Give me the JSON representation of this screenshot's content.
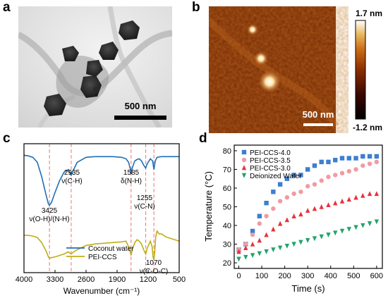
{
  "figure": {
    "panels": {
      "a": {
        "letter": "a",
        "scale_bar_label": "500 nm"
      },
      "b": {
        "letter": "b",
        "scale_bar_label": "500 nm",
        "colorbar_max": "1.7 nm",
        "colorbar_min": "-1.2 nm",
        "colormap_colors": [
          "#000000",
          "#3a0800",
          "#8a2e00",
          "#c96a14",
          "#e8b357",
          "#ffffff"
        ]
      },
      "c": {
        "letter": "c",
        "annotations": [
          {
            "id": "3425",
            "lines": [
              "3425",
              "ν(O-H)/(N-H)"
            ]
          },
          {
            "id": "2935",
            "lines": [
              "2935",
              "ν(C-H)"
            ]
          },
          {
            "id": "1585",
            "lines": [
              "1585",
              "δ(N-H)"
            ]
          },
          {
            "id": "1255",
            "lines": [
              "1255",
              "ν(C-N)"
            ]
          },
          {
            "id": "1070",
            "lines": [
              "1070",
              "ν(C-O-C)"
            ]
          }
        ]
      },
      "d": {
        "letter": "d"
      }
    }
  },
  "chart_data": [
    {
      "panel": "c",
      "type": "line",
      "xlabel": "Wavenumber (cm⁻¹)",
      "ylabel": "",
      "xlim": [
        4000,
        500
      ],
      "x_reversed": true,
      "x_ticks": [
        4000,
        3300,
        2600,
        1900,
        1200,
        500
      ],
      "y_ticks_shown": false,
      "dashed_reference_lines": [
        3425,
        2935,
        1585,
        1255,
        1070
      ],
      "reference_line_color": "#f08080",
      "legend_placement": "center-right",
      "series": [
        {
          "name": "Coconut water",
          "color": "#1f6fb4",
          "x": [
            4000,
            3900,
            3800,
            3700,
            3600,
            3500,
            3450,
            3425,
            3380,
            3300,
            3200,
            3100,
            3000,
            2935,
            2880,
            2800,
            2600,
            2400,
            2200,
            2000,
            1800,
            1700,
            1640,
            1600,
            1585,
            1560,
            1500,
            1450,
            1400,
            1350,
            1300,
            1255,
            1220,
            1150,
            1100,
            1070,
            1040,
            1000,
            900,
            800,
            700,
            600,
            500
          ],
          "y": [
            1.0,
            0.995,
            0.985,
            0.95,
            0.85,
            0.72,
            0.66,
            0.65,
            0.67,
            0.74,
            0.82,
            0.88,
            0.9,
            0.86,
            0.9,
            0.95,
            0.985,
            0.99,
            0.99,
            0.99,
            0.985,
            0.975,
            0.95,
            0.9,
            0.87,
            0.91,
            0.96,
            0.97,
            0.975,
            0.96,
            0.93,
            0.91,
            0.94,
            0.975,
            0.96,
            0.9,
            0.96,
            0.985,
            0.99,
            0.99,
            0.99,
            0.99,
            0.99
          ]
        },
        {
          "name": "PEI-CCS",
          "color": "#bfae16",
          "x": [
            4000,
            3900,
            3800,
            3700,
            3600,
            3500,
            3450,
            3425,
            3380,
            3300,
            3200,
            3100,
            3000,
            2935,
            2880,
            2800,
            2600,
            2400,
            2200,
            2000,
            1800,
            1700,
            1640,
            1600,
            1585,
            1560,
            1500,
            1450,
            1400,
            1350,
            1300,
            1255,
            1220,
            1150,
            1110,
            1090,
            1070,
            1050,
            1030,
            1000,
            950,
            900,
            850,
            800,
            700,
            600,
            500
          ],
          "y": [
            0.44,
            0.44,
            0.435,
            0.425,
            0.39,
            0.33,
            0.29,
            0.28,
            0.285,
            0.29,
            0.3,
            0.31,
            0.325,
            0.31,
            0.325,
            0.34,
            0.37,
            0.38,
            0.385,
            0.39,
            0.395,
            0.4,
            0.36,
            0.32,
            0.3,
            0.34,
            0.39,
            0.41,
            0.4,
            0.38,
            0.34,
            0.31,
            0.35,
            0.4,
            0.36,
            0.29,
            0.27,
            0.33,
            0.43,
            0.47,
            0.45,
            0.45,
            0.44,
            0.43,
            0.42,
            0.41,
            0.4
          ]
        }
      ]
    },
    {
      "panel": "d",
      "type": "scatter",
      "xlabel": "Time (s)",
      "ylabel": "Temperature (°C)",
      "xlim": [
        -20,
        625
      ],
      "ylim": [
        17,
        83
      ],
      "x_ticks": [
        0,
        100,
        200,
        300,
        400,
        500,
        600
      ],
      "y_ticks": [
        20,
        30,
        40,
        50,
        60,
        70,
        80
      ],
      "legend_placement": "top-left",
      "series": [
        {
          "name": "PEI-CCS-4.0",
          "color": "#3b7fd1",
          "marker": "square",
          "x": [
            0,
            30,
            60,
            90,
            120,
            150,
            180,
            210,
            240,
            270,
            300,
            330,
            360,
            390,
            420,
            450,
            480,
            510,
            540,
            570,
            600
          ],
          "y": [
            27,
            30,
            37,
            45,
            52,
            58,
            62,
            65,
            67,
            67,
            70,
            72,
            74,
            74,
            75,
            76,
            76,
            76,
            77,
            77,
            77
          ]
        },
        {
          "name": "PEI-CCS-3.5",
          "color": "#f29aa2",
          "marker": "circle",
          "x": [
            0,
            30,
            60,
            90,
            120,
            150,
            180,
            210,
            240,
            270,
            300,
            330,
            360,
            390,
            420,
            450,
            480,
            510,
            540,
            570,
            600
          ],
          "y": [
            27,
            30,
            35,
            41,
            45,
            49,
            53,
            55,
            57,
            58,
            61,
            62,
            64,
            66,
            67,
            68,
            69,
            70,
            72,
            73,
            74
          ]
        },
        {
          "name": "PEI-CCS-3.0",
          "color": "#e8323a",
          "marker": "triangle-up",
          "x": [
            0,
            30,
            60,
            90,
            120,
            150,
            180,
            210,
            240,
            270,
            300,
            330,
            360,
            390,
            420,
            450,
            480,
            510,
            540,
            570,
            600
          ],
          "y": [
            26,
            28,
            30,
            32,
            35,
            38,
            41,
            43,
            45,
            46,
            48,
            49,
            50,
            51,
            52,
            53,
            54,
            55,
            56,
            57,
            57
          ]
        },
        {
          "name": "Deionized Water",
          "color": "#1fa46b",
          "marker": "triangle-down",
          "x": [
            0,
            30,
            60,
            90,
            120,
            150,
            180,
            210,
            240,
            270,
            300,
            330,
            360,
            390,
            420,
            450,
            480,
            510,
            540,
            570,
            600
          ],
          "y": [
            22,
            23,
            24,
            25,
            26,
            27,
            28,
            29,
            30,
            31,
            32,
            33,
            34,
            35,
            36,
            37,
            38,
            39,
            40,
            41,
            42
          ]
        }
      ]
    }
  ]
}
